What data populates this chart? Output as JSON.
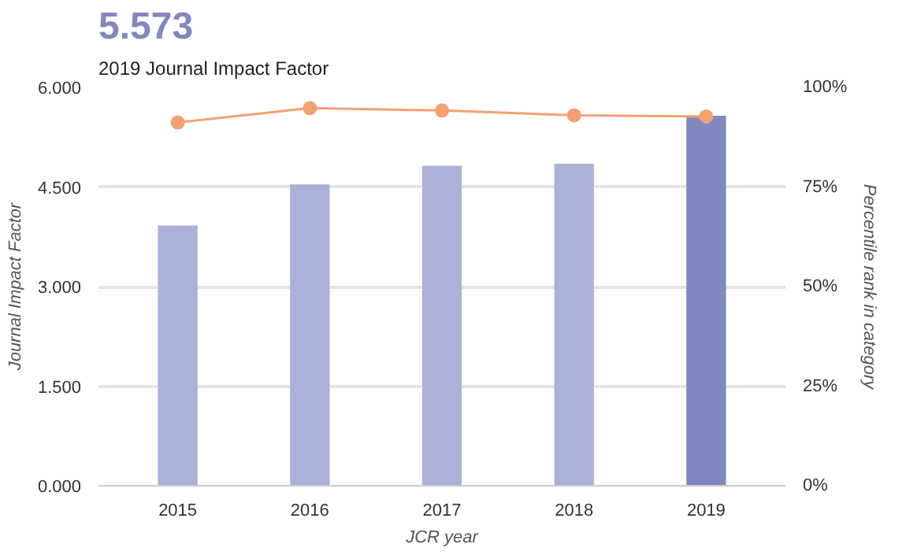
{
  "chart_data": {
    "type": "bar",
    "title": "5.573",
    "subtitle": "2019 Journal Impact Factor",
    "xlabel": "JCR year",
    "ylabel": "Journal Impact Factor",
    "y2label": "Percentile rank in category",
    "categories": [
      "2015",
      "2016",
      "2017",
      "2018",
      "2019"
    ],
    "series": [
      {
        "colors": [
          "#aab0d8",
          "#aab0d8",
          "#aab0d8",
          "#aab0d8",
          "#7f88c0"
        ],
        "values": [
          3.92,
          4.54,
          4.82,
          4.85,
          5.573
        ]
      },
      {
        "type": "line",
        "axis": "y2",
        "color": "#f4a070",
        "marker": "circle",
        "values": [
          91.2,
          94.8,
          94.2,
          93.0,
          92.7
        ]
      }
    ],
    "ylim": [
      0,
      6
    ],
    "yticks": [
      {
        "value": 0,
        "label": "0.000"
      },
      {
        "value": 1.5,
        "label": "1.500"
      },
      {
        "value": 3,
        "label": "3.000"
      },
      {
        "value": 4.5,
        "label": "4.500"
      },
      {
        "value": 6,
        "label": "6.000"
      }
    ],
    "y2lim": [
      0,
      100
    ],
    "y2ticks": [
      {
        "value": 0,
        "label": "0%"
      },
      {
        "value": 25,
        "label": "25%"
      },
      {
        "value": 50,
        "label": "50%"
      },
      {
        "value": 75,
        "label": "75%"
      },
      {
        "value": 100,
        "label": "100%"
      }
    ],
    "grid": "y"
  }
}
